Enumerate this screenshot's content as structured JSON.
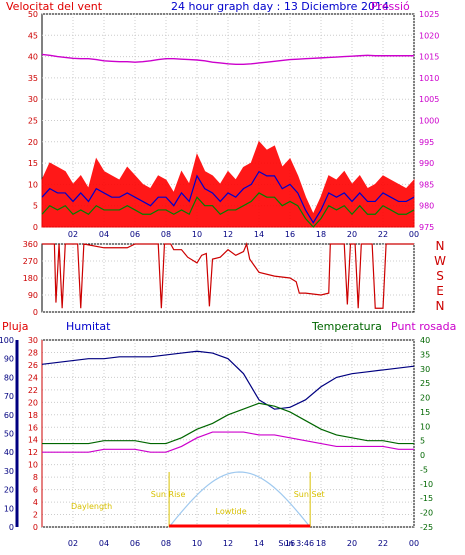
{
  "header": {
    "wind_label": "Velocitat del vent",
    "title": "24 hour graph day : 13 Diciembre 2014",
    "pressure_label": "Pressió"
  },
  "colors": {
    "wind": "#ff0000",
    "gust_line": "#0000cc",
    "avg_line": "#008000",
    "pressure": "#cc00cc",
    "direction": "#cc0000",
    "humidity": "#000080",
    "temperature": "#006600",
    "dewpoint": "#cc00cc",
    "rain": "#ff0000",
    "sun": "#9fc9ef",
    "sun_label": "#d8c000"
  },
  "chart_data": [
    {
      "type": "line",
      "name": "wind-and-pressure",
      "ylabel": "Velocitat del vent",
      "y2label": "Pressió",
      "ylim": [
        0,
        50
      ],
      "y2lim": [
        975,
        1025
      ],
      "yticks": [
        0,
        5,
        10,
        15,
        20,
        25,
        30,
        35,
        40,
        45,
        50
      ],
      "y2ticks": [
        975,
        980,
        985,
        990,
        995,
        1000,
        1005,
        1010,
        1015,
        1020,
        1025
      ],
      "xticks": [
        "02",
        "04",
        "06",
        "08",
        "10",
        "12",
        "14",
        "16",
        "18",
        "20",
        "22",
        "00"
      ],
      "x_hours": [
        0,
        0.5,
        1,
        1.5,
        2,
        2.5,
        3,
        3.5,
        4,
        4.5,
        5,
        5.5,
        6,
        6.5,
        7,
        7.5,
        8,
        8.5,
        9,
        9.5,
        10,
        10.5,
        11,
        11.5,
        12,
        12.5,
        13,
        13.5,
        14,
        14.5,
        15,
        15.5,
        16,
        16.5,
        17,
        17.5,
        18,
        18.5,
        19,
        19.5,
        20,
        20.5,
        21,
        21.5,
        22,
        22.5,
        23,
        23.5,
        24
      ],
      "series": [
        {
          "name": "gust",
          "values": [
            11,
            15,
            14,
            13,
            10,
            12,
            9,
            16,
            13,
            12,
            11,
            14,
            12,
            10,
            9,
            12,
            11,
            8,
            13,
            10,
            17,
            13,
            12,
            10,
            13,
            11,
            14,
            15,
            20,
            18,
            19,
            14,
            16,
            12,
            7,
            3,
            7,
            12,
            11,
            13,
            10,
            12,
            9,
            10,
            12,
            11,
            10,
            9,
            11
          ]
        },
        {
          "name": "speed",
          "values": [
            7,
            9,
            8,
            8,
            6,
            8,
            6,
            9,
            8,
            7,
            7,
            8,
            7,
            6,
            5,
            7,
            7,
            5,
            8,
            6,
            12,
            9,
            8,
            6,
            8,
            7,
            9,
            10,
            13,
            12,
            12,
            9,
            10,
            8,
            4,
            1,
            4,
            8,
            7,
            8,
            6,
            8,
            6,
            6,
            8,
            7,
            6,
            6,
            7
          ]
        },
        {
          "name": "average",
          "values": [
            3,
            5,
            4,
            5,
            3,
            4,
            3,
            5,
            4,
            4,
            4,
            5,
            4,
            3,
            3,
            4,
            4,
            3,
            4,
            3,
            7,
            5,
            5,
            3,
            4,
            4,
            5,
            6,
            8,
            7,
            7,
            5,
            6,
            5,
            2,
            0,
            2,
            5,
            4,
            5,
            3,
            5,
            3,
            3,
            5,
            4,
            3,
            3,
            4
          ]
        },
        {
          "name": "pressure",
          "values": [
            1015.5,
            1015.3,
            1015.0,
            1014.8,
            1014.6,
            1014.5,
            1014.5,
            1014.3,
            1014.0,
            1013.9,
            1013.8,
            1013.8,
            1013.7,
            1013.8,
            1014.0,
            1014.3,
            1014.5,
            1014.5,
            1014.4,
            1014.3,
            1014.2,
            1014.0,
            1013.7,
            1013.5,
            1013.3,
            1013.2,
            1013.2,
            1013.3,
            1013.5,
            1013.7,
            1013.9,
            1014.1,
            1014.3,
            1014.4,
            1014.5,
            1014.6,
            1014.7,
            1014.8,
            1014.9,
            1015.0,
            1015.1,
            1015.2,
            1015.3,
            1015.2,
            1015.2,
            1015.2,
            1015.2,
            1015.2,
            1015.2
          ]
        }
      ]
    },
    {
      "type": "line",
      "name": "wind-direction",
      "yticks": [
        0,
        90,
        180,
        270,
        360
      ],
      "ylim": [
        0,
        360
      ],
      "compass_labels": [
        "N",
        "W",
        "S",
        "E",
        "N"
      ],
      "xticks": [
        "02",
        "04",
        "06",
        "08",
        "10",
        "12",
        "14",
        "16",
        "18",
        "20",
        "22",
        "00"
      ],
      "series": [
        {
          "name": "direction",
          "points": [
            [
              0,
              360
            ],
            [
              0.8,
              360
            ],
            [
              0.9,
              50
            ],
            [
              1.1,
              360
            ],
            [
              1.3,
              20
            ],
            [
              1.5,
              360
            ],
            [
              2.3,
              360
            ],
            [
              2.5,
              20
            ],
            [
              2.7,
              360
            ],
            [
              4.0,
              340
            ],
            [
              5.5,
              340
            ],
            [
              6.0,
              360
            ],
            [
              7.5,
              360
            ],
            [
              7.7,
              20
            ],
            [
              7.9,
              360
            ],
            [
              8.3,
              360
            ],
            [
              8.5,
              330
            ],
            [
              9.0,
              330
            ],
            [
              9.4,
              290
            ],
            [
              10.0,
              260
            ],
            [
              10.3,
              300
            ],
            [
              10.6,
              310
            ],
            [
              10.8,
              30
            ],
            [
              11.0,
              280
            ],
            [
              11.5,
              290
            ],
            [
              12.0,
              330
            ],
            [
              12.5,
              300
            ],
            [
              13.0,
              320
            ],
            [
              13.2,
              360
            ],
            [
              13.4,
              280
            ],
            [
              14.0,
              210
            ],
            [
              15.0,
              190
            ],
            [
              16.0,
              180
            ],
            [
              16.4,
              160
            ],
            [
              16.6,
              100
            ],
            [
              17.0,
              100
            ],
            [
              18.0,
              90
            ],
            [
              18.5,
              100
            ],
            [
              18.6,
              360
            ],
            [
              19.5,
              360
            ],
            [
              19.7,
              40
            ],
            [
              19.9,
              360
            ],
            [
              20.2,
              360
            ],
            [
              20.4,
              20
            ],
            [
              20.6,
              360
            ],
            [
              21.3,
              360
            ],
            [
              21.5,
              20
            ],
            [
              22.0,
              20
            ],
            [
              22.2,
              360
            ],
            [
              24,
              360
            ]
          ]
        }
      ]
    },
    {
      "type": "line",
      "name": "humidity-temperature-rain",
      "labels": {
        "rain": "Pluja",
        "humidity": "Humitat",
        "temperature": "Temperatura",
        "dewpoint": "Punt rosada"
      },
      "humidity_ticks": [
        0,
        10,
        20,
        30,
        40,
        50,
        60,
        70,
        80,
        90,
        100
      ],
      "rain_ticks": [
        0,
        2,
        4,
        6,
        8,
        10,
        12,
        14,
        16,
        18,
        20,
        22,
        24,
        26,
        28,
        30
      ],
      "temp_ticks": [
        -25,
        -20,
        -15,
        -10,
        -5,
        0,
        5,
        10,
        15,
        20,
        25,
        30,
        35,
        40
      ],
      "xticks": [
        "02",
        "04",
        "06",
        "08",
        "10",
        "12",
        "14",
        "16",
        "18",
        "20",
        "22",
        "00"
      ],
      "x_hours": [
        0,
        1,
        2,
        3,
        4,
        5,
        6,
        7,
        8,
        9,
        10,
        11,
        12,
        13,
        14,
        15,
        16,
        17,
        18,
        19,
        20,
        21,
        22,
        23,
        24
      ],
      "series": [
        {
          "name": "humidity",
          "values": [
            87,
            88,
            89,
            90,
            90,
            91,
            91,
            91,
            92,
            93,
            94,
            93,
            90,
            82,
            68,
            63,
            64,
            68,
            75,
            80,
            82,
            83,
            84,
            85,
            86
          ]
        },
        {
          "name": "temperature",
          "values": [
            4,
            4,
            4,
            4,
            5,
            5,
            5,
            4,
            4,
            6,
            9,
            11,
            14,
            16,
            18,
            17,
            15,
            12,
            9,
            7,
            6,
            5,
            5,
            4,
            4
          ]
        },
        {
          "name": "dewpoint",
          "values": [
            1,
            1,
            1,
            1,
            2,
            2,
            2,
            1,
            1,
            3,
            6,
            8,
            8,
            8,
            7,
            7,
            6,
            5,
            4,
            3,
            3,
            3,
            3,
            2,
            2
          ]
        },
        {
          "name": "rain",
          "values": [
            0,
            0,
            0,
            0,
            0,
            0,
            0,
            0,
            0,
            0,
            0,
            0,
            0,
            0,
            0,
            0,
            0,
            0,
            0,
            0,
            0,
            0,
            0,
            0,
            0
          ]
        }
      ],
      "sun": {
        "sunrise_label": "Sun Rise",
        "sunset_label": "Sun Set",
        "daylength_label": "Daylength",
        "lowtide_label": "Lowtide",
        "sun_hour": "Sun 3:46"
      }
    }
  ]
}
